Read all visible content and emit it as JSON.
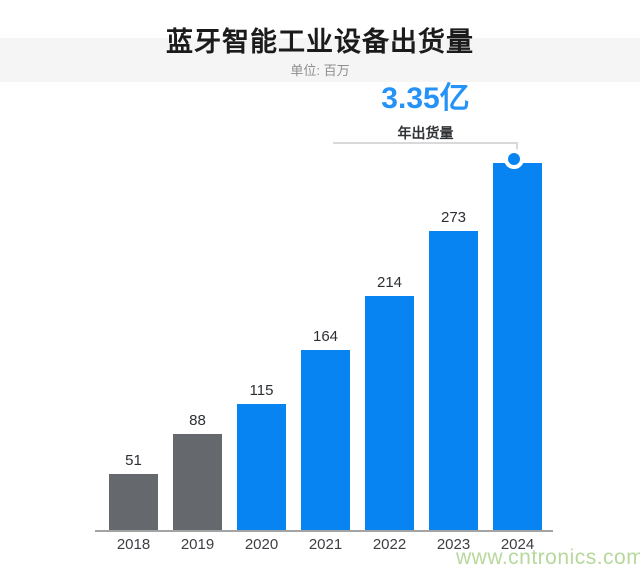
{
  "page": {
    "title": "蓝牙智能工业设备出货量",
    "subtitle": "单位: 百万",
    "watermark": "www.cntronics.com"
  },
  "annotation": {
    "headline": "3.35亿",
    "label": "年出货量",
    "applies_to": "2024"
  },
  "chart_data": {
    "type": "bar",
    "title": "蓝牙智能工业设备出货量",
    "unit": "百万",
    "categories": [
      "2018",
      "2019",
      "2020",
      "2021",
      "2022",
      "2023",
      "2024"
    ],
    "values": [
      51,
      88,
      115,
      164,
      214,
      273,
      335
    ],
    "data_labels": [
      "51",
      "88",
      "115",
      "164",
      "214",
      "273",
      ""
    ],
    "bar_colors": [
      "#65686c",
      "#65686c",
      "#0884f2",
      "#0884f2",
      "#0884f2",
      "#0884f2",
      "#0884f2"
    ],
    "highlight": {
      "category": "2024",
      "value_millions": 335,
      "callout_text": "3.35亿",
      "callout_label": "年出货量"
    },
    "xlabel": "",
    "ylabel": "",
    "ylim": [
      0,
      350
    ],
    "grid": false,
    "legend": false
  },
  "colors": {
    "accent_blue": "#0884f2",
    "gray_bar": "#65686c",
    "headline_blue": "#2492f6",
    "watermark_green": "#b6d89b",
    "axis_gray": "#a3a3a3",
    "bracket_gray": "#d9d9d9",
    "band_gray": "#f5f5f6"
  }
}
